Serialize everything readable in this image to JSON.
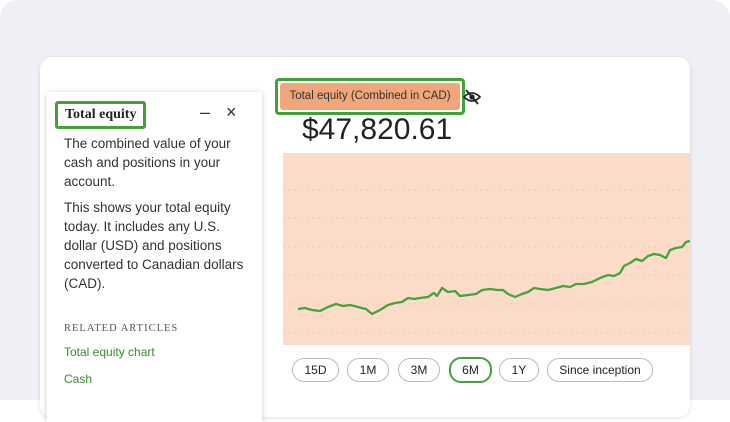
{
  "help_panel": {
    "title": "Total equity",
    "paragraphs": [
      "The combined value of your cash and positions in your account.",
      "This shows your total equity today. It includes any U.S. dollar (USD) and positions converted to Canadian dollars (CAD)."
    ],
    "related_heading": "RELATED ARTICLES",
    "links": [
      "Total equity chart",
      "Cash"
    ]
  },
  "main": {
    "label": "Total equity (Combined in CAD)",
    "amount": "$47,820.61",
    "ranges": [
      "15D",
      "1M",
      "3M",
      "6M",
      "1Y",
      "Since inception"
    ]
  }
}
